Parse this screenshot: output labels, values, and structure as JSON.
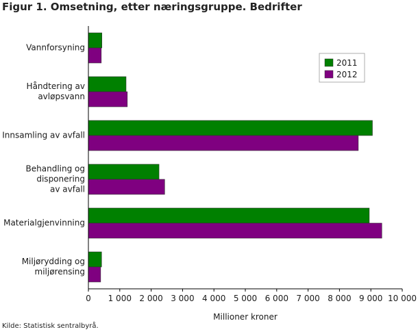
{
  "title": "Figur 1. Omsetning, etter næringsgruppe. Bedrifter",
  "source": "Kilde: Statistisk sentralbyrå.",
  "chart_data": {
    "type": "bar",
    "orientation": "horizontal",
    "categories": [
      [
        "Vannforsyning"
      ],
      [
        "Håndtering av",
        "avløpsvann"
      ],
      [
        "Innsamling av avfall"
      ],
      [
        "Behandling og",
        "disponering",
        "av avfall"
      ],
      [
        "Materialgjenvinning"
      ],
      [
        "Miljørydding og",
        "miljørensing"
      ]
    ],
    "series": [
      {
        "name": "2011",
        "color": "#008000",
        "values": [
          430,
          1200,
          9050,
          2250,
          8950,
          420
        ]
      },
      {
        "name": "2012",
        "color": "#7f0080",
        "values": [
          410,
          1240,
          8600,
          2430,
          9350,
          390
        ]
      }
    ],
    "xlabel": "Millioner kroner",
    "xlim": [
      0,
      10000
    ],
    "xticks": [
      0,
      1000,
      2000,
      3000,
      4000,
      5000,
      6000,
      7000,
      8000,
      9000,
      10000
    ],
    "xtick_labels": [
      "0",
      "1 000",
      "2 000",
      "3 000",
      "4 000",
      "5 000",
      "6 000",
      "7 000",
      "8 000",
      "9 000",
      "10 000"
    ],
    "grid": false,
    "legend_position": "top-right"
  }
}
